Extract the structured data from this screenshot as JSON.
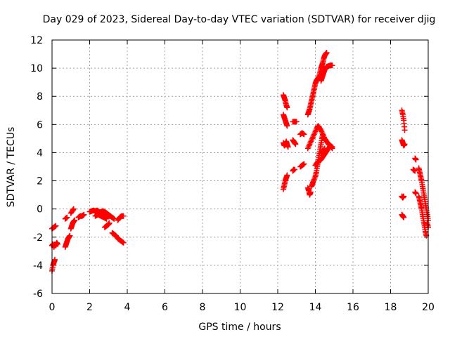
{
  "chart_data": {
    "type": "scatter",
    "title": "Day 029 of 2023, Sidereal Day-to-day VTEC variation (SDTVAR) for receiver djig",
    "xlabel": "GPS time / hours",
    "ylabel": "SDTVAR / TECUs",
    "xlim": [
      0,
      20
    ],
    "ylim": [
      -6,
      12
    ],
    "xticks": [
      0,
      2,
      4,
      6,
      8,
      10,
      12,
      14,
      16,
      18,
      20
    ],
    "yticks": [
      -6,
      -4,
      -2,
      0,
      2,
      4,
      6,
      8,
      10,
      12
    ],
    "grid": true,
    "marker": "plus",
    "color": "#ff0000",
    "series": [
      {
        "segments": [
          [
            [
              0.0,
              -4.4
            ],
            [
              0.05,
              -4.0
            ],
            [
              0.1,
              -3.8
            ],
            [
              0.15,
              -3.6
            ]
          ],
          [
            [
              0.0,
              -1.4
            ],
            [
              0.1,
              -1.3
            ],
            [
              0.2,
              -1.2
            ]
          ],
          [
            [
              0.0,
              -2.6
            ],
            [
              0.05,
              -2.5
            ],
            [
              0.1,
              -2.7
            ],
            [
              0.15,
              -2.5
            ],
            [
              0.2,
              -2.6
            ],
            [
              0.25,
              -2.4
            ],
            [
              0.3,
              -2.5
            ]
          ],
          [
            [
              0.7,
              -2.7
            ],
            [
              0.75,
              -2.5
            ],
            [
              0.8,
              -2.3
            ],
            [
              0.85,
              -2.1
            ],
            [
              0.9,
              -2.0
            ],
            [
              0.95,
              -1.9
            ]
          ],
          [
            [
              0.7,
              -0.7
            ],
            [
              0.8,
              -0.6
            ]
          ],
          [
            [
              1.0,
              -1.4
            ],
            [
              1.05,
              -1.2
            ],
            [
              1.1,
              -1.0
            ],
            [
              1.15,
              -0.9
            ],
            [
              1.2,
              -0.8
            ]
          ],
          [
            [
              1.0,
              -0.3
            ],
            [
              1.1,
              -0.1
            ],
            [
              1.15,
              0.0
            ]
          ],
          [
            [
              1.4,
              -0.6
            ],
            [
              1.5,
              -0.5
            ],
            [
              1.6,
              -0.5
            ],
            [
              1.7,
              -0.4
            ]
          ],
          [
            [
              2.0,
              -0.2
            ],
            [
              2.1,
              -0.15
            ],
            [
              2.2,
              -0.1
            ],
            [
              2.3,
              -0.15
            ],
            [
              2.4,
              -0.1
            ],
            [
              2.5,
              -0.2
            ],
            [
              2.6,
              -0.25
            ],
            [
              2.7,
              -0.3
            ],
            [
              2.8,
              -0.35
            ],
            [
              2.9,
              -0.4
            ],
            [
              3.0,
              -0.45
            ],
            [
              3.1,
              -0.5
            ]
          ],
          [
            [
              2.4,
              -0.4
            ],
            [
              2.5,
              -0.3
            ],
            [
              2.6,
              -0.2
            ],
            [
              2.7,
              -0.15
            ],
            [
              2.8,
              -0.2
            ],
            [
              2.9,
              -0.3
            ],
            [
              3.0,
              -0.4
            ],
            [
              3.1,
              -0.5
            ],
            [
              3.2,
              -0.6
            ],
            [
              3.3,
              -0.7
            ]
          ],
          [
            [
              2.3,
              -0.5
            ],
            [
              2.45,
              -0.4
            ],
            [
              2.6,
              -0.5
            ],
            [
              2.75,
              -0.6
            ],
            [
              2.9,
              -0.7
            ]
          ],
          [
            [
              2.8,
              -1.3
            ],
            [
              2.9,
              -1.2
            ],
            [
              3.0,
              -1.1
            ],
            [
              3.05,
              -1.0
            ]
          ],
          [
            [
              3.2,
              -1.7
            ],
            [
              3.3,
              -1.8
            ],
            [
              3.4,
              -1.9
            ],
            [
              3.5,
              -2.1
            ],
            [
              3.6,
              -2.2
            ],
            [
              3.7,
              -2.3
            ],
            [
              3.8,
              -2.4
            ]
          ],
          [
            [
              3.5,
              -0.8
            ],
            [
              3.6,
              -0.6
            ],
            [
              3.7,
              -0.5
            ],
            [
              3.8,
              -0.5
            ]
          ],
          [
            [
              12.3,
              1.4
            ],
            [
              12.35,
              1.7
            ],
            [
              12.4,
              2.0
            ],
            [
              12.45,
              2.2
            ],
            [
              12.5,
              2.4
            ]
          ],
          [
            [
              12.3,
              4.7
            ],
            [
              12.35,
              4.5
            ],
            [
              12.4,
              4.6
            ],
            [
              12.45,
              4.8
            ],
            [
              12.5,
              4.6
            ],
            [
              12.55,
              4.4
            ]
          ],
          [
            [
              12.3,
              6.7
            ],
            [
              12.35,
              6.5
            ],
            [
              12.4,
              6.3
            ],
            [
              12.45,
              6.1
            ],
            [
              12.5,
              5.9
            ]
          ],
          [
            [
              12.3,
              8.1
            ],
            [
              12.35,
              7.9
            ],
            [
              12.4,
              7.7
            ],
            [
              12.45,
              7.4
            ],
            [
              12.5,
              7.2
            ]
          ],
          [
            [
              12.8,
              6.2
            ],
            [
              12.9,
              6.2
            ],
            [
              13.0,
              6.2
            ]
          ],
          [
            [
              12.8,
              4.9
            ],
            [
              12.85,
              4.8
            ],
            [
              12.9,
              4.7
            ],
            [
              12.95,
              4.6
            ]
          ],
          [
            [
              12.8,
              2.7
            ],
            [
              12.85,
              2.8
            ],
            [
              12.9,
              2.8
            ]
          ],
          [
            [
              13.2,
              5.3
            ],
            [
              13.3,
              5.4
            ],
            [
              13.4,
              5.3
            ]
          ],
          [
            [
              13.2,
              3.0
            ],
            [
              13.3,
              3.1
            ],
            [
              13.4,
              3.2
            ]
          ],
          [
            [
              13.6,
              6.7
            ],
            [
              13.65,
              6.9
            ],
            [
              13.7,
              7.1
            ],
            [
              13.75,
              7.4
            ],
            [
              13.8,
              7.7
            ],
            [
              13.85,
              8.0
            ],
            [
              13.9,
              8.3
            ],
            [
              13.95,
              8.6
            ],
            [
              14.0,
              8.9
            ],
            [
              14.05,
              9.1
            ],
            [
              14.1,
              9.2
            ],
            [
              14.15,
              9.3
            ],
            [
              14.2,
              9.4
            ]
          ],
          [
            [
              14.2,
              9.4
            ],
            [
              14.25,
              9.7
            ],
            [
              14.3,
              10.0
            ],
            [
              14.35,
              10.2
            ],
            [
              14.4,
              10.4
            ],
            [
              14.45,
              10.7
            ],
            [
              14.5,
              10.9
            ],
            [
              14.55,
              11.0
            ],
            [
              14.6,
              11.1
            ]
          ],
          [
            [
              14.3,
              9.1
            ],
            [
              14.35,
              9.3
            ],
            [
              14.4,
              9.5
            ],
            [
              14.45,
              9.7
            ],
            [
              14.5,
              9.9
            ],
            [
              14.55,
              10.0
            ],
            [
              14.6,
              10.1
            ],
            [
              14.7,
              10.15
            ],
            [
              14.8,
              10.2
            ],
            [
              14.9,
              10.2
            ]
          ],
          [
            [
              13.6,
              4.3
            ],
            [
              13.7,
              4.6
            ],
            [
              13.8,
              4.9
            ],
            [
              13.9,
              5.2
            ],
            [
              14.0,
              5.5
            ],
            [
              14.1,
              5.8
            ],
            [
              14.15,
              5.9
            ],
            [
              14.2,
              5.8
            ],
            [
              14.3,
              5.6
            ],
            [
              14.4,
              5.3
            ],
            [
              14.5,
              5.0
            ],
            [
              14.6,
              4.8
            ],
            [
              14.7,
              4.6
            ],
            [
              14.8,
              4.5
            ],
            [
              14.9,
              4.4
            ]
          ],
          [
            [
              13.6,
              1.5
            ],
            [
              13.65,
              1.3
            ],
            [
              13.7,
              1.0
            ],
            [
              13.75,
              1.2
            ]
          ],
          [
            [
              13.8,
              1.6
            ],
            [
              13.85,
              1.8
            ],
            [
              13.9,
              2.0
            ],
            [
              14.0,
              2.3
            ],
            [
              14.05,
              2.6
            ],
            [
              14.1,
              3.0
            ],
            [
              14.15,
              3.4
            ],
            [
              14.2,
              3.8
            ],
            [
              14.25,
              4.2
            ],
            [
              14.3,
              4.6
            ],
            [
              14.35,
              5.0
            ],
            [
              14.4,
              5.3
            ]
          ],
          [
            [
              14.0,
              3.1
            ],
            [
              14.1,
              3.3
            ],
            [
              14.2,
              3.4
            ],
            [
              14.3,
              3.5
            ],
            [
              14.4,
              3.7
            ],
            [
              14.5,
              3.9
            ],
            [
              14.6,
              4.1
            ],
            [
              14.7,
              4.3
            ],
            [
              14.8,
              4.5
            ],
            [
              14.9,
              4.3
            ]
          ],
          [
            [
              14.3,
              4.0
            ],
            [
              14.4,
              4.1
            ],
            [
              14.5,
              4.3
            ]
          ],
          [
            [
              18.6,
              7.0
            ],
            [
              18.65,
              6.7
            ],
            [
              18.7,
              6.3
            ],
            [
              18.75,
              5.6
            ]
          ],
          [
            [
              18.6,
              4.9
            ],
            [
              18.65,
              4.7
            ],
            [
              18.7,
              4.5
            ],
            [
              18.75,
              4.6
            ]
          ],
          [
            [
              18.6,
              0.9
            ],
            [
              18.65,
              0.8
            ],
            [
              18.7,
              0.9
            ]
          ],
          [
            [
              18.6,
              -0.4
            ],
            [
              18.65,
              -0.5
            ],
            [
              18.7,
              -0.6
            ]
          ],
          [
            [
              19.3,
              3.6
            ],
            [
              19.35,
              3.5
            ]
          ],
          [
            [
              19.2,
              2.8
            ],
            [
              19.3,
              2.7
            ]
          ],
          [
            [
              19.3,
              1.2
            ],
            [
              19.35,
              1.1
            ]
          ],
          [
            [
              19.5,
              2.9
            ],
            [
              19.55,
              2.6
            ],
            [
              19.6,
              2.3
            ],
            [
              19.65,
              2.0
            ],
            [
              19.7,
              1.6
            ],
            [
              19.75,
              1.2
            ],
            [
              19.8,
              0.8
            ],
            [
              19.85,
              0.4
            ],
            [
              19.9,
              0.0
            ],
            [
              19.95,
              -0.4
            ],
            [
              20.0,
              -0.8
            ]
          ],
          [
            [
              19.5,
              0.9
            ],
            [
              19.55,
              0.6
            ],
            [
              19.6,
              0.3
            ],
            [
              19.65,
              0.0
            ],
            [
              19.7,
              -0.4
            ],
            [
              19.75,
              -0.8
            ],
            [
              19.8,
              -1.2
            ],
            [
              19.85,
              -1.6
            ],
            [
              19.9,
              -1.9
            ]
          ],
          [
            [
              19.95,
              -1.0
            ],
            [
              20.0,
              -1.3
            ]
          ]
        ]
      }
    ]
  }
}
